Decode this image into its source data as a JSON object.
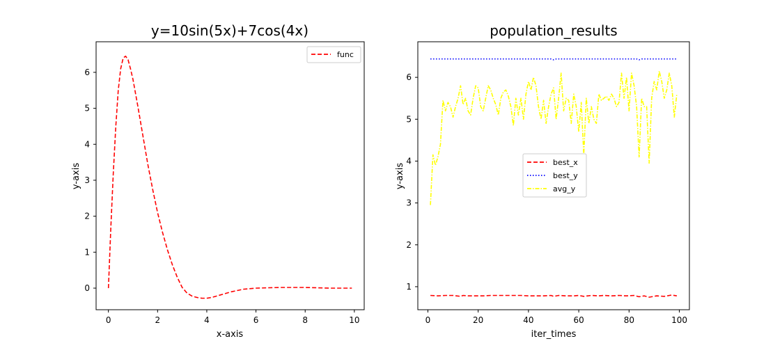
{
  "chart_data": [
    {
      "type": "line",
      "title": "y=10sin(5x)+7cos(4x)",
      "xlabel": "x-axis",
      "ylabel": "y-axis",
      "xlim": [
        -0.5,
        10.4
      ],
      "ylim": [
        -0.6,
        6.85
      ],
      "xticks": [
        0,
        2,
        4,
        6,
        8,
        10
      ],
      "yticks": [
        0,
        1,
        2,
        3,
        4,
        5,
        6
      ],
      "legend_position": "top-right",
      "grid": false,
      "series": [
        {
          "name": "func",
          "color": "#ff0000",
          "dash": "dashed",
          "x": [
            0,
            0.1,
            0.2,
            0.3,
            0.4,
            0.5,
            0.6,
            0.7,
            0.8,
            0.9,
            1.0,
            1.2,
            1.4,
            1.6,
            1.8,
            2.0,
            2.2,
            2.4,
            2.6,
            2.8,
            3.0,
            3.2,
            3.4,
            3.6,
            3.8,
            4.0,
            4.2,
            4.5,
            5.0,
            5.5,
            6.0,
            6.5,
            7.0,
            7.5,
            8.0,
            8.5,
            9.0,
            9.5,
            9.9
          ],
          "y": [
            0.0,
            1.7,
            3.2,
            4.5,
            5.5,
            6.1,
            6.4,
            6.45,
            6.35,
            6.1,
            5.8,
            5.05,
            4.25,
            3.45,
            2.75,
            2.1,
            1.55,
            1.07,
            0.65,
            0.3,
            0.02,
            -0.14,
            -0.22,
            -0.26,
            -0.28,
            -0.28,
            -0.26,
            -0.2,
            -0.1,
            -0.03,
            0.0,
            0.01,
            0.02,
            0.02,
            0.02,
            0.01,
            0.0,
            0.0,
            0.0
          ]
        }
      ]
    },
    {
      "type": "line",
      "title": "population_results",
      "xlabel": "iter_times",
      "ylabel": "y-axis",
      "xlim": [
        -4,
        104
      ],
      "ylim": [
        0.45,
        6.85
      ],
      "xticks": [
        0,
        20,
        40,
        60,
        80,
        100
      ],
      "yticks": [
        1,
        2,
        3,
        4,
        5,
        6
      ],
      "legend_position": "center",
      "grid": false,
      "series": [
        {
          "name": "best_x",
          "color": "#ff0000",
          "dash": "dashed",
          "x": [
            1,
            4,
            7,
            10,
            13,
            14,
            16,
            19,
            22,
            25,
            28,
            31,
            34,
            37,
            40,
            43,
            46,
            49,
            50,
            52,
            55,
            58,
            60,
            62,
            65,
            68,
            70,
            73,
            76,
            79,
            82,
            84,
            86,
            88,
            91,
            94,
            97,
            99
          ],
          "y": [
            0.79,
            0.78,
            0.79,
            0.79,
            0.77,
            0.79,
            0.78,
            0.78,
            0.78,
            0.79,
            0.79,
            0.79,
            0.79,
            0.79,
            0.78,
            0.78,
            0.78,
            0.79,
            0.77,
            0.79,
            0.78,
            0.78,
            0.79,
            0.77,
            0.79,
            0.78,
            0.79,
            0.78,
            0.79,
            0.78,
            0.79,
            0.76,
            0.78,
            0.75,
            0.78,
            0.77,
            0.8,
            0.78
          ]
        },
        {
          "name": "best_y",
          "color": "#0000ff",
          "dash": "dotted",
          "x": [
            1,
            10,
            20,
            30,
            40,
            49,
            50,
            51,
            60,
            70,
            80,
            83,
            84,
            85,
            90,
            99
          ],
          "y": [
            6.44,
            6.44,
            6.44,
            6.44,
            6.44,
            6.44,
            6.42,
            6.44,
            6.44,
            6.44,
            6.44,
            6.44,
            6.42,
            6.44,
            6.44,
            6.44
          ]
        },
        {
          "name": "avg_y",
          "color": "#ffff00",
          "dash": "dashdot",
          "x": [
            1,
            2,
            3,
            4,
            5,
            6,
            7,
            8,
            9,
            10,
            11,
            12,
            13,
            14,
            15,
            16,
            17,
            18,
            19,
            20,
            21,
            22,
            23,
            24,
            25,
            26,
            27,
            28,
            29,
            30,
            31,
            32,
            33,
            34,
            35,
            36,
            37,
            38,
            39,
            40,
            41,
            42,
            43,
            44,
            45,
            46,
            47,
            48,
            49,
            50,
            51,
            52,
            53,
            54,
            55,
            56,
            57,
            58,
            59,
            60,
            61,
            62,
            63,
            64,
            65,
            66,
            67,
            68,
            69,
            70,
            71,
            72,
            73,
            74,
            75,
            76,
            77,
            78,
            79,
            80,
            81,
            82,
            83,
            84,
            85,
            86,
            87,
            88,
            89,
            90,
            91,
            92,
            93,
            94,
            95,
            96,
            97,
            98,
            99
          ],
          "y": [
            2.95,
            4.15,
            3.9,
            4.1,
            4.4,
            5.45,
            5.2,
            5.4,
            5.3,
            5.05,
            5.3,
            5.5,
            5.8,
            5.35,
            5.5,
            5.2,
            5.1,
            5.5,
            5.8,
            5.75,
            5.3,
            5.2,
            5.5,
            5.8,
            5.7,
            5.5,
            5.35,
            5.1,
            5.5,
            5.65,
            5.7,
            5.55,
            5.3,
            4.85,
            5.5,
            5.1,
            5.5,
            5.0,
            5.6,
            5.9,
            5.7,
            6.0,
            5.8,
            5.3,
            5.0,
            5.45,
            4.9,
            5.3,
            5.6,
            5.75,
            5.0,
            5.5,
            6.1,
            5.2,
            5.5,
            5.45,
            4.9,
            5.6,
            5.3,
            4.7,
            5.4,
            4.15,
            5.5,
            4.9,
            5.3,
            5.0,
            4.9,
            5.6,
            5.45,
            5.5,
            5.55,
            5.45,
            5.6,
            5.5,
            5.3,
            5.4,
            6.1,
            5.5,
            6.0,
            5.2,
            6.1,
            5.8,
            5.3,
            4.1,
            5.5,
            5.3,
            5.3,
            3.95,
            5.5,
            5.9,
            5.7,
            6.15,
            5.9,
            5.5,
            5.7,
            6.1,
            5.8,
            5.05,
            5.6
          ]
        }
      ]
    }
  ]
}
